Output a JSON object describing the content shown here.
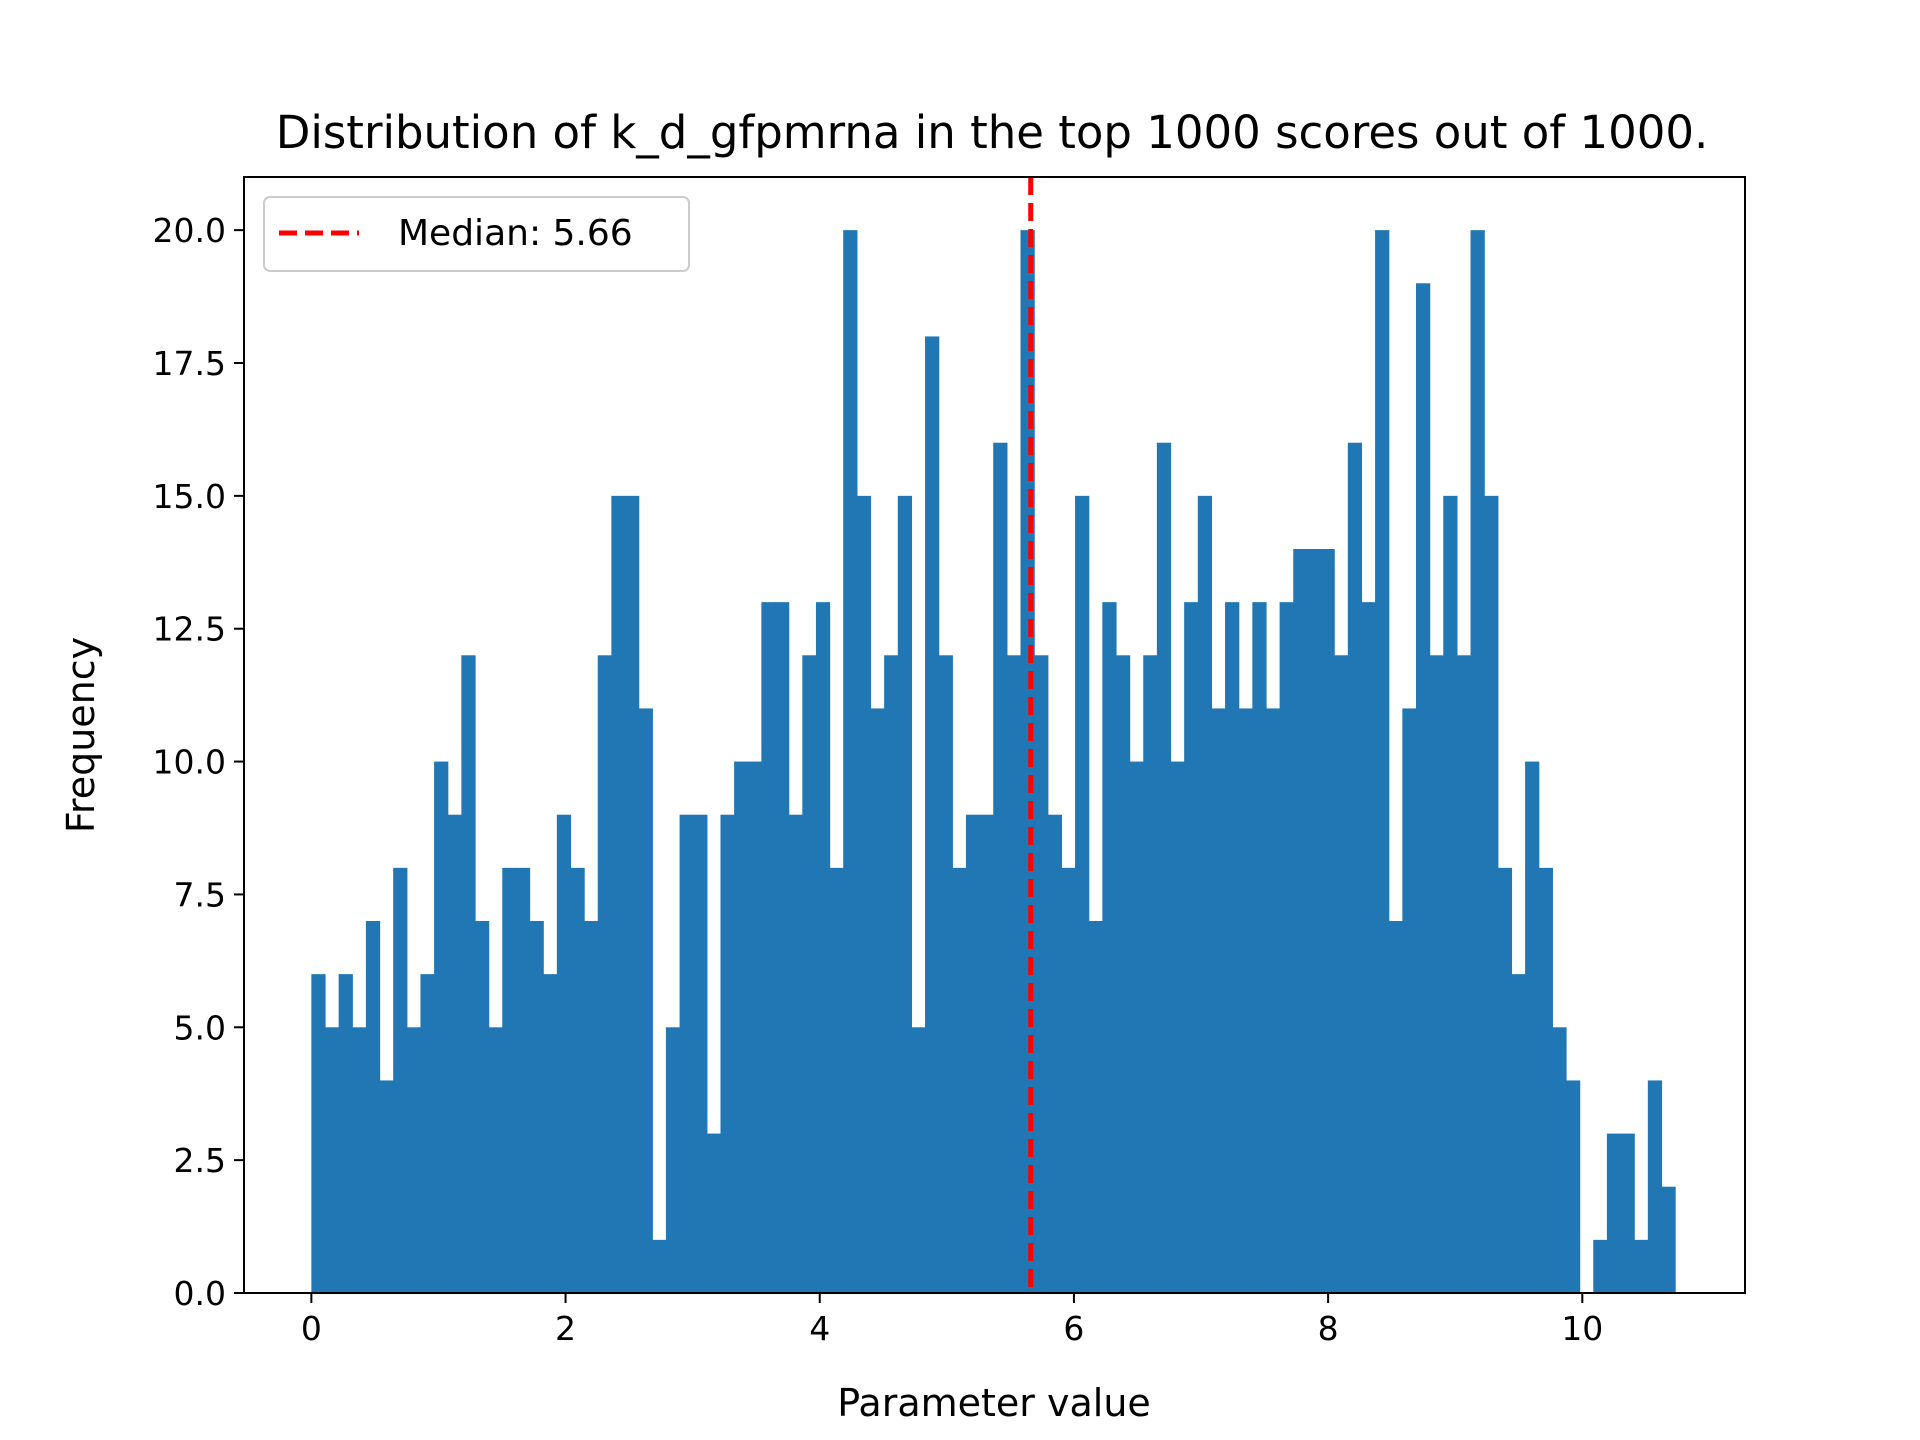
{
  "chart_data": {
    "type": "bar",
    "title": "Distribution of k_d_gfpmrna in the top 1000 scores out of 1000.",
    "xlabel": "Parameter value",
    "ylabel": "Frequency",
    "xlim": [
      -0.53,
      11.28
    ],
    "ylim": [
      0,
      21
    ],
    "xticks": [
      0,
      2,
      4,
      6,
      8,
      10
    ],
    "xtick_labels": [
      "0",
      "2",
      "4",
      "6",
      "8",
      "10"
    ],
    "yticks": [
      0,
      2.5,
      5,
      7.5,
      10,
      12.5,
      15,
      17.5,
      20
    ],
    "ytick_labels": [
      "0.0",
      "2.5",
      "5.0",
      "7.5",
      "10.0",
      "12.5",
      "15.0",
      "17.5",
      "20.0"
    ],
    "grid": false,
    "legend_position": "top-left",
    "bar_color": "#2077b4",
    "bin_start": 0.0,
    "bin_width": 0.1073,
    "series": [
      {
        "values": [
          6,
          5,
          6,
          5,
          7,
          4,
          8,
          5,
          6,
          10,
          9,
          12,
          7,
          5,
          8,
          8,
          7,
          6,
          9,
          8,
          7,
          12,
          15,
          15,
          11,
          1,
          5,
          9,
          9,
          3,
          9,
          10,
          10,
          13,
          13,
          9,
          12,
          13,
          8,
          20,
          15,
          11,
          12,
          15,
          5,
          18,
          12,
          8,
          9,
          9,
          16,
          12,
          20,
          12,
          9,
          8,
          15,
          7,
          13,
          12,
          10,
          12,
          16,
          10,
          13,
          15,
          11,
          13,
          11,
          13,
          11,
          13,
          14,
          14,
          14,
          12,
          16,
          13,
          20,
          7,
          11,
          19,
          12,
          15,
          12,
          20,
          15,
          8,
          6,
          10,
          8,
          5,
          4,
          0,
          1,
          3,
          3,
          1,
          4,
          2
        ]
      }
    ],
    "median": {
      "label": "Median: 5.66",
      "value": 5.66,
      "color": "#ff0000"
    }
  }
}
